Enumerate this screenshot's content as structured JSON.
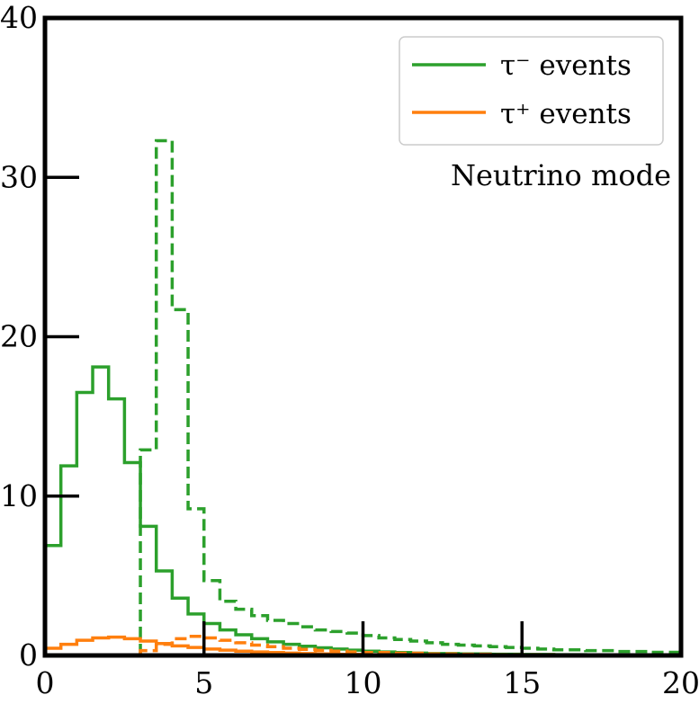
{
  "chart_data": {
    "type": "line",
    "title": "",
    "xlabel": "",
    "ylabel": "",
    "xlim": [
      0,
      20
    ],
    "ylim": [
      0,
      40
    ],
    "xticks": [
      0,
      5,
      10,
      15,
      20
    ],
    "yticks": [
      0,
      10,
      20,
      30,
      40
    ],
    "xtick_labels": [
      "0",
      "5",
      "10",
      "15",
      "20"
    ],
    "ytick_labels": [
      "0",
      "10",
      "20",
      "30",
      "40"
    ],
    "grid": false,
    "legend_position": "top-right",
    "legend": [
      {
        "label": "τ⁻ events",
        "color": "#2ca02c"
      },
      {
        "label": "τ⁺ events",
        "color": "#ff7f0e"
      }
    ],
    "annotations": [
      {
        "text": "Neutrino mode"
      }
    ],
    "series": [
      {
        "name": "τ⁻ events",
        "color": "#2ca02c",
        "dash": "solid",
        "bin_edges": [
          0,
          0.5,
          1,
          1.5,
          2,
          2.5,
          3,
          3.5,
          4,
          4.5,
          5,
          5.5,
          6,
          6.5,
          7,
          7.5,
          8,
          8.5,
          9,
          9.5,
          10,
          10.5,
          11,
          11.5,
          12,
          13,
          14,
          15,
          16,
          17,
          18,
          19,
          20
        ],
        "values": [
          6.9,
          11.9,
          16.5,
          18.1,
          16.1,
          12.1,
          8.1,
          5.3,
          3.6,
          2.6,
          2.0,
          1.6,
          1.3,
          1.05,
          0.85,
          0.7,
          0.58,
          0.48,
          0.4,
          0.33,
          0.27,
          0.22,
          0.18,
          0.15,
          0.12,
          0.1,
          0.08,
          0.06,
          0.05,
          0.04,
          0.03,
          0.02
        ]
      },
      {
        "name": "τ⁻ events",
        "color": "#2ca02c",
        "dash": "dashed",
        "bin_edges": [
          3,
          3.5,
          4,
          4.5,
          5,
          5.5,
          6,
          6.5,
          7,
          7.5,
          8,
          8.5,
          9,
          9.5,
          10,
          10.5,
          11,
          11.5,
          12,
          12.5,
          13,
          13.5,
          14,
          14.5,
          15,
          15.5,
          16,
          17,
          18,
          19,
          20
        ],
        "values": [
          12.9,
          32.3,
          21.7,
          9.2,
          4.7,
          3.4,
          2.9,
          2.5,
          2.2,
          2.0,
          1.8,
          1.6,
          1.5,
          1.4,
          1.25,
          1.1,
          1.0,
          0.9,
          0.8,
          0.7,
          0.65,
          0.6,
          0.55,
          0.5,
          0.45,
          0.4,
          0.35,
          0.3,
          0.25,
          0.2
        ]
      },
      {
        "name": "τ⁺ events",
        "color": "#ff7f0e",
        "dash": "solid",
        "bin_edges": [
          0,
          0.5,
          1,
          1.5,
          2,
          2.5,
          3,
          3.5,
          4,
          4.5,
          5,
          5.5,
          6,
          6.5,
          7,
          7.5,
          8,
          8.5,
          9,
          10,
          12,
          14,
          16,
          18,
          20
        ],
        "values": [
          0.45,
          0.7,
          0.95,
          1.1,
          1.15,
          1.05,
          0.9,
          0.75,
          0.6,
          0.5,
          0.4,
          0.33,
          0.27,
          0.22,
          0.18,
          0.15,
          0.12,
          0.1,
          0.07,
          0.05,
          0.03,
          0.02,
          0.01,
          0.0
        ]
      },
      {
        "name": "τ⁺ events",
        "color": "#ff7f0e",
        "dash": "dashed",
        "bin_edges": [
          3,
          3.5,
          4,
          4.5,
          5,
          5.5,
          6,
          6.5,
          7,
          7.5,
          8,
          8.5,
          9,
          9.5,
          10,
          11,
          12,
          13,
          14,
          16,
          18,
          20
        ],
        "values": [
          0.3,
          0.7,
          1.05,
          1.2,
          1.1,
          0.95,
          0.8,
          0.65,
          0.55,
          0.45,
          0.38,
          0.32,
          0.27,
          0.22,
          0.18,
          0.14,
          0.1,
          0.08,
          0.05,
          0.03,
          0.02
        ]
      }
    ]
  }
}
